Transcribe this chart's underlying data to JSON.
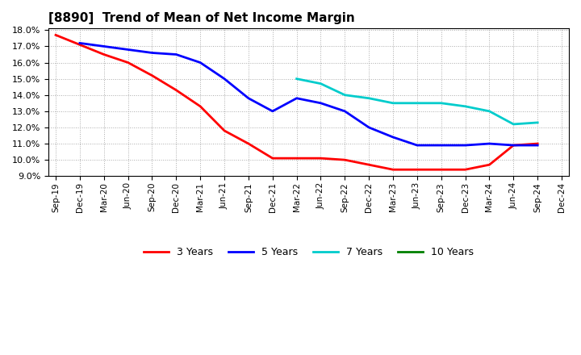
{
  "title": "[8890]  Trend of Mean of Net Income Margin",
  "background_color": "#ffffff",
  "grid_color": "#aaaaaa",
  "xlabels": [
    "Sep-19",
    "Dec-19",
    "Mar-20",
    "Jun-20",
    "Sep-20",
    "Dec-20",
    "Mar-21",
    "Jun-21",
    "Sep-21",
    "Dec-21",
    "Mar-22",
    "Jun-22",
    "Sep-22",
    "Dec-22",
    "Mar-23",
    "Jun-23",
    "Sep-23",
    "Dec-23",
    "Mar-24",
    "Jun-24",
    "Sep-24",
    "Dec-24"
  ],
  "ylim": [
    0.09,
    0.181
  ],
  "yticks": [
    0.09,
    0.1,
    0.11,
    0.12,
    0.13,
    0.14,
    0.15,
    0.16,
    0.17,
    0.18
  ],
  "s3_x": [
    0,
    1,
    2,
    3,
    4,
    5,
    6,
    7,
    8,
    9,
    10,
    11,
    12,
    13,
    14,
    15,
    16,
    17,
    18,
    19,
    20
  ],
  "s3_y": [
    0.177,
    0.171,
    0.165,
    0.16,
    0.152,
    0.143,
    0.133,
    0.118,
    0.11,
    0.101,
    0.101,
    0.101,
    0.1,
    0.097,
    0.094,
    0.094,
    0.094,
    0.094,
    0.097,
    0.109,
    0.11
  ],
  "s3_color": "#ff0000",
  "s5_x": [
    1,
    2,
    3,
    4,
    5,
    6,
    7,
    8,
    9,
    10,
    11,
    12,
    13,
    14,
    15,
    16,
    17,
    18,
    19,
    20
  ],
  "s5_y": [
    0.172,
    0.17,
    0.168,
    0.166,
    0.165,
    0.16,
    0.15,
    0.138,
    0.13,
    0.138,
    0.135,
    0.13,
    0.12,
    0.114,
    0.109,
    0.109,
    0.109,
    0.11,
    0.109,
    0.109
  ],
  "s5_color": "#0000ff",
  "s7_x": [
    10,
    11,
    12,
    13,
    14,
    15,
    16,
    17,
    18,
    19,
    20
  ],
  "s7_y": [
    0.15,
    0.147,
    0.14,
    0.138,
    0.135,
    0.135,
    0.135,
    0.133,
    0.13,
    0.122,
    0.123
  ],
  "s7_color": "#00cccc",
  "s10_color": "#008000",
  "legend_labels": [
    "3 Years",
    "5 Years",
    "7 Years",
    "10 Years"
  ],
  "legend_colors": [
    "#ff0000",
    "#0000ff",
    "#00cccc",
    "#008000"
  ]
}
